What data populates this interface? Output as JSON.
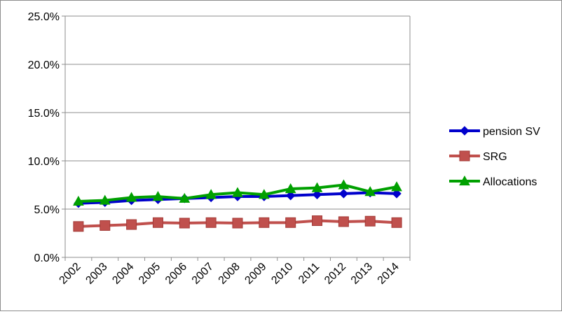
{
  "chart_data": {
    "type": "line",
    "categories": [
      "2002",
      "2003",
      "2004",
      "2005",
      "2006",
      "2007",
      "2008",
      "2009",
      "2010",
      "2011",
      "2012",
      "2013",
      "2014"
    ],
    "ylim": [
      0,
      25
    ],
    "yticks": [
      0,
      5,
      10,
      15,
      20,
      25
    ],
    "ytick_labels": [
      "0.0%",
      "5.0%",
      "10.0%",
      "15.0%",
      "20.0%",
      "25.0%"
    ],
    "grid": {
      "horizontal": true,
      "vertical": false
    },
    "legend_position": "right",
    "series": [
      {
        "name": "pension SV",
        "color": "#0000CC",
        "marker": "diamond",
        "values": [
          5.6,
          5.7,
          5.9,
          6.0,
          6.1,
          6.2,
          6.3,
          6.3,
          6.4,
          6.5,
          6.6,
          6.7,
          6.6
        ]
      },
      {
        "name": "SRG",
        "color": "#C0504D",
        "marker": "square",
        "values": [
          3.2,
          3.3,
          3.4,
          3.6,
          3.55,
          3.6,
          3.55,
          3.6,
          3.6,
          3.8,
          3.7,
          3.75,
          3.6
        ]
      },
      {
        "name": "Allocations",
        "color": "#00A000",
        "marker": "triangle",
        "values": [
          5.8,
          5.9,
          6.2,
          6.3,
          6.1,
          6.5,
          6.7,
          6.5,
          7.1,
          7.2,
          7.5,
          6.8,
          7.3
        ]
      }
    ]
  }
}
